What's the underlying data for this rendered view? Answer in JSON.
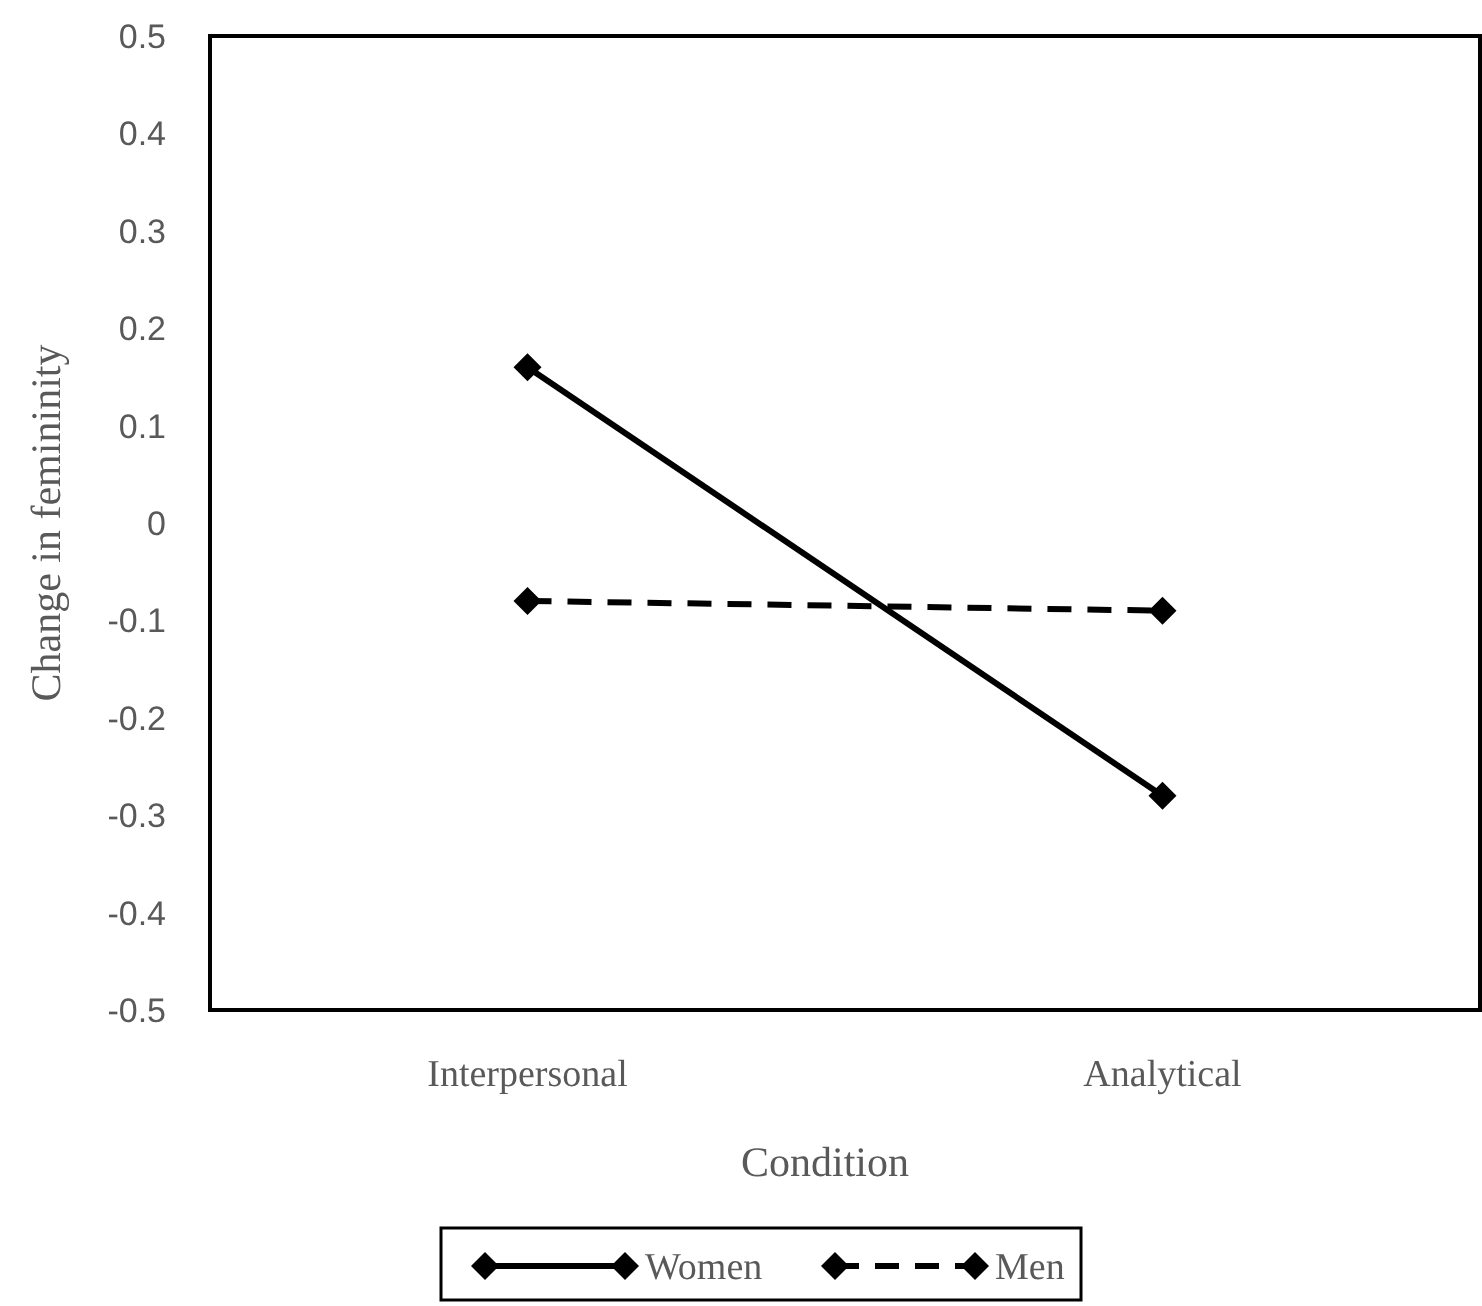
{
  "chart_data": {
    "type": "line",
    "xlabel": "Condition",
    "ylabel": "Change in femininity",
    "categories": [
      "Interpersonal",
      "Analytical"
    ],
    "series": [
      {
        "name": "Women",
        "color": "#000000",
        "values": [
          0.16,
          -0.28
        ],
        "line_style": "solid"
      },
      {
        "name": "Men",
        "color": "#000000",
        "values": [
          -0.08,
          -0.09
        ],
        "line_style": "dashed"
      }
    ],
    "ylim": [
      -0.5,
      0.5
    ],
    "yticks": [
      -0.5,
      -0.4,
      -0.3,
      -0.2,
      -0.1,
      0,
      0.1,
      0.2,
      0.3,
      0.4,
      0.5
    ],
    "grid": false,
    "legend": "bottom",
    "marker": "diamond"
  }
}
